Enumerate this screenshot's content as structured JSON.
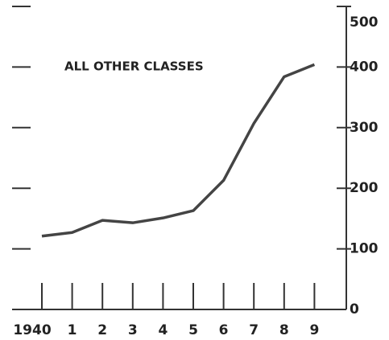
{
  "chart_data": {
    "type": "line",
    "annotation": "ALL OTHER CLASSES",
    "categories": [
      "1940",
      "1",
      "2",
      "3",
      "4",
      "5",
      "6",
      "7",
      "8",
      "9"
    ],
    "series": [
      {
        "name": "All other classes",
        "color": "#444444",
        "values": [
          121,
          127,
          147,
          143,
          151,
          163,
          213,
          307,
          384,
          404
        ]
      }
    ],
    "ylim": [
      0,
      500
    ],
    "yticks": [
      0,
      100,
      200,
      300,
      400,
      500
    ],
    "y_axis_side": "right"
  }
}
